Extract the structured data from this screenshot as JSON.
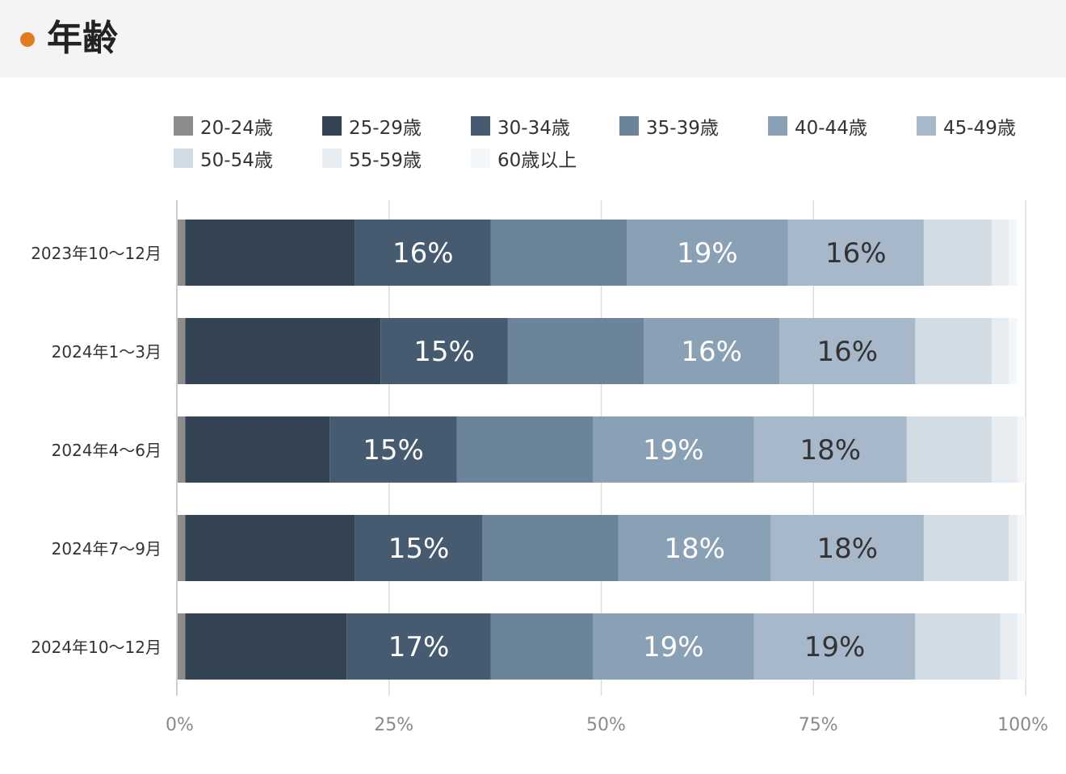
{
  "header": {
    "title": "年齢",
    "dot_color": "#e07b22"
  },
  "chart_data": {
    "type": "bar",
    "orientation": "horizontal",
    "stacked": true,
    "title": "年齢",
    "categories": [
      "2023年10〜12月",
      "2024年1〜3月",
      "2024年4〜6月",
      "2024年7〜9月",
      "2024年10〜12月"
    ],
    "series": [
      {
        "name": "20-24歳",
        "color": "#8c8c8c",
        "values": [
          1,
          1,
          1,
          1,
          1
        ]
      },
      {
        "name": "25-29歳",
        "color": "#334354",
        "values": [
          20,
          23,
          17,
          20,
          19
        ]
      },
      {
        "name": "30-34歳",
        "color": "#465b70",
        "values": [
          16,
          15,
          15,
          15,
          17
        ]
      },
      {
        "name": "35-39歳",
        "color": "#6b8499",
        "values": [
          16,
          16,
          16,
          16,
          12
        ]
      },
      {
        "name": "40-44歳",
        "color": "#8aa0b4",
        "values": [
          19,
          16,
          19,
          18,
          19
        ]
      },
      {
        "name": "45-49歳",
        "color": "#a6b8c9",
        "values": [
          16,
          16,
          18,
          18,
          19
        ]
      },
      {
        "name": "50-54歳",
        "color": "#d1dce4",
        "values": [
          8,
          9,
          10,
          10,
          10
        ]
      },
      {
        "name": "55-59歳",
        "color": "#e7edf1",
        "values": [
          2,
          2,
          3,
          1,
          2
        ]
      },
      {
        "name": "60歳以上",
        "color": "#f4f7fa",
        "values": [
          1,
          1,
          1,
          1,
          1
        ]
      }
    ],
    "data_labels": [
      [
        "",
        "",
        "16%",
        "",
        "19%",
        "16%",
        "",
        "",
        ""
      ],
      [
        "",
        "",
        "15%",
        "",
        "16%",
        "16%",
        "",
        "",
        ""
      ],
      [
        "",
        "",
        "15%",
        "",
        "19%",
        "18%",
        "",
        "",
        ""
      ],
      [
        "",
        "",
        "15%",
        "",
        "18%",
        "18%",
        "",
        "",
        ""
      ],
      [
        "",
        "",
        "17%",
        "",
        "19%",
        "19%",
        "",
        "",
        ""
      ]
    ],
    "xlim": [
      0,
      100
    ],
    "xticks": [
      "0%",
      "25%",
      "50%",
      "75%",
      "100%"
    ],
    "grid": true,
    "legend_position": "top"
  }
}
